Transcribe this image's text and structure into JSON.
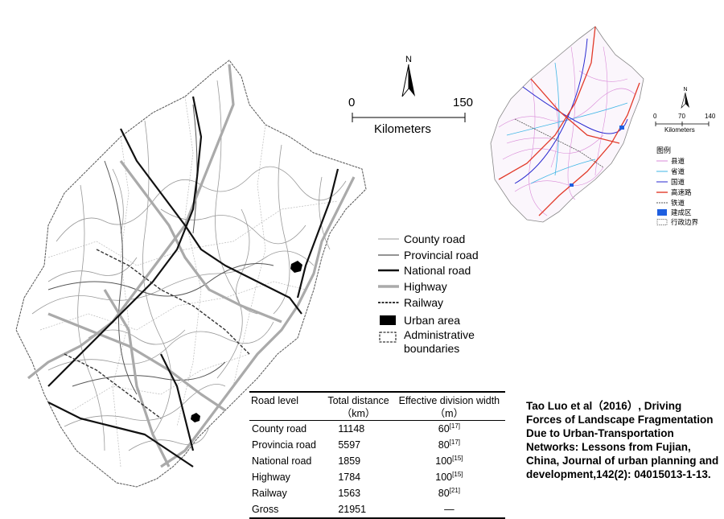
{
  "main_map": {
    "north_label": "N",
    "scale": {
      "zero": "0",
      "max": "150",
      "unit": "Kilometers"
    },
    "legend": [
      {
        "label": "County road",
        "symbol": "thin-gray-line"
      },
      {
        "label": "Provincial road",
        "symbol": "thin-dark-line"
      },
      {
        "label": "National road",
        "symbol": "thick-black-line"
      },
      {
        "label": "Highway",
        "symbol": "thick-gray-line"
      },
      {
        "label": "Railway",
        "symbol": "hatched-line"
      },
      {
        "label": "Urban area",
        "symbol": "black-fill"
      },
      {
        "label": "Administrative",
        "label2": "boundaries",
        "symbol": "dashed-box"
      }
    ]
  },
  "inset_map": {
    "north_label": "N",
    "scale": {
      "zero": "0",
      "mid": "70",
      "max": "140",
      "unit": "Kilometers"
    },
    "legend_title": "图例",
    "legend": [
      {
        "label": "县道",
        "color": "#d98ad8"
      },
      {
        "label": "省道",
        "color": "#3fb6e6"
      },
      {
        "label": "国道",
        "color": "#2a2ad0"
      },
      {
        "label": "高速路",
        "color": "#e23a2a"
      },
      {
        "label": "铁道",
        "color": "#555555"
      },
      {
        "label": "建成区",
        "color": "#1f5fe0"
      },
      {
        "label": "行政边界",
        "color": "#888888"
      }
    ]
  },
  "table": {
    "headers": [
      {
        "line1": "Road level",
        "line2": ""
      },
      {
        "line1": "Total distance",
        "line2": "（km）"
      },
      {
        "line1": "Effective division width",
        "line2": "（m）"
      }
    ],
    "rows": [
      {
        "level": "County road",
        "distance": "11148",
        "width": "60",
        "ref": "[17]"
      },
      {
        "level": "Provincia road",
        "distance": "5597",
        "width": "80",
        "ref": "[17]"
      },
      {
        "level": "National road",
        "distance": "1859",
        "width": "100",
        "ref": "[15]"
      },
      {
        "level": "Highway",
        "distance": "1784",
        "width": "100",
        "ref": "[15]"
      },
      {
        "level": "Railway",
        "distance": "1563",
        "width": "80",
        "ref": "[21]"
      },
      {
        "level": "Gross",
        "distance": "21951",
        "width": "—",
        "ref": ""
      }
    ]
  },
  "citation": "Tao Luo et al（2016）, Driving Forces of Landscape Fragmentation Due to Urban-Transportation Networks: Lessons from Fujian, China, Journal of urban planning and development,142(2): 04015013-1-13."
}
